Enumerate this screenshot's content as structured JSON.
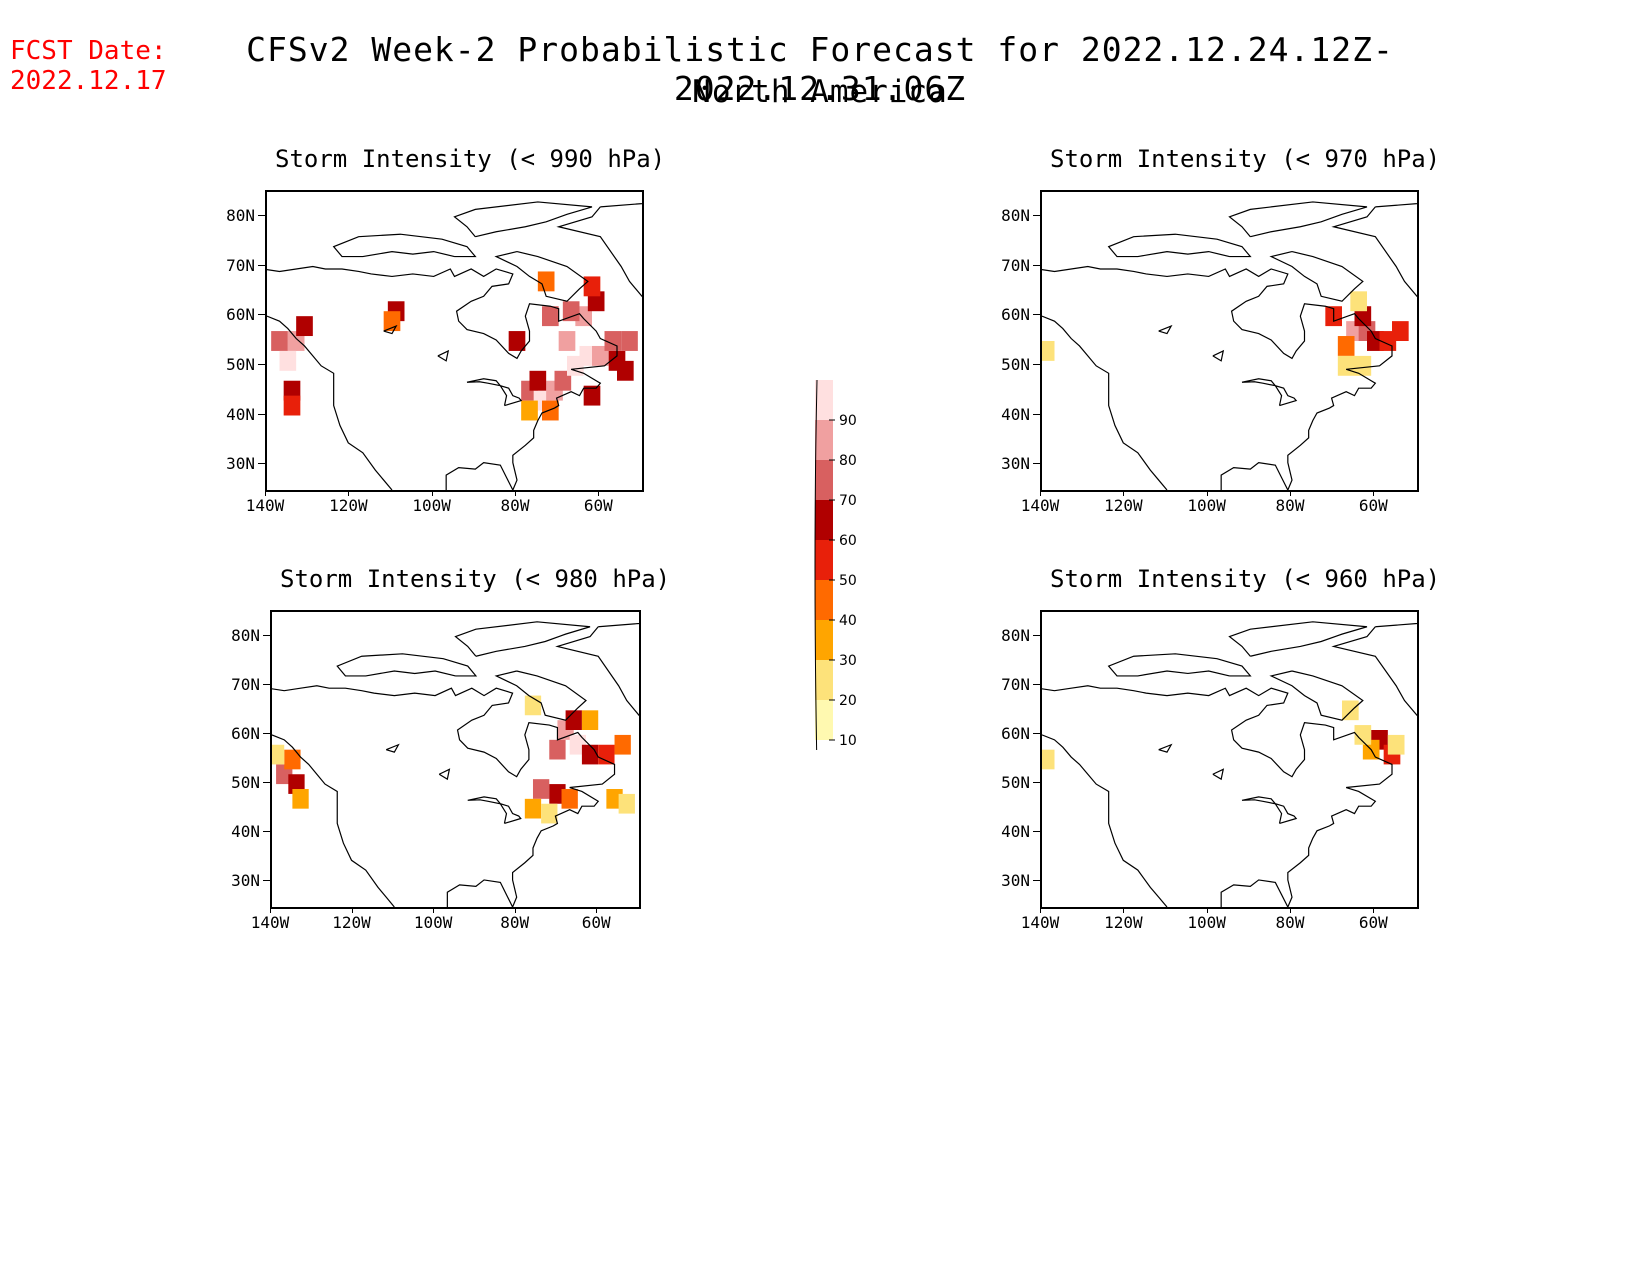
{
  "header": {
    "fcst_label": "FCST Date:",
    "fcst_date": "2022.12.17",
    "title": "CFSv2 Week-2 Probabilistic Forecast for 2022.12.24.12Z-2022.12.31.06Z",
    "subtitle": "North America"
  },
  "axes": {
    "lat_labels": [
      "80N",
      "70N",
      "60N",
      "50N",
      "40N",
      "30N"
    ],
    "lon_labels": [
      "140W",
      "120W",
      "100W",
      "80W",
      "60W"
    ]
  },
  "panels": [
    {
      "id": "p990",
      "title": "Storm Intensity (< 990 hPa)"
    },
    {
      "id": "p970",
      "title": "Storm Intensity (< 970 hPa)"
    },
    {
      "id": "p980",
      "title": "Storm Intensity (< 980 hPa)"
    },
    {
      "id": "p960",
      "title": "Storm Intensity (< 960 hPa)"
    }
  ],
  "colorbar": {
    "levels": [
      "10",
      "20",
      "30",
      "40",
      "50",
      "60",
      "70",
      "80",
      "90"
    ],
    "colors": [
      "#fff9b0",
      "#fde27a",
      "#ffa500",
      "#ff6a00",
      "#e8200a",
      "#b00000",
      "#d86060",
      "#f0a0a0",
      "#ffe0e0"
    ]
  },
  "chart_data": [
    {
      "type": "heatmap",
      "title": "Storm Intensity (< 990 hPa)",
      "lon_range": [
        -140,
        -50
      ],
      "lat_range": [
        25,
        85
      ],
      "cells": [
        [
          -137,
          55,
          70
        ],
        [
          -133,
          55,
          80
        ],
        [
          -135,
          51,
          90
        ],
        [
          -131,
          58,
          60
        ],
        [
          -134,
          45,
          60
        ],
        [
          -134,
          42,
          50
        ],
        [
          -109,
          61,
          60
        ],
        [
          -110,
          59,
          40
        ],
        [
          -77,
          45,
          70
        ],
        [
          -74,
          43,
          90
        ],
        [
          -71,
          45,
          80
        ],
        [
          -69,
          47,
          70
        ],
        [
          -75,
          47,
          60
        ],
        [
          -72,
          41,
          40
        ],
        [
          -77,
          41,
          30
        ],
        [
          -66,
          50,
          90
        ],
        [
          -68,
          55,
          80
        ],
        [
          -63,
          52,
          90
        ],
        [
          -60,
          52,
          80
        ],
        [
          -56,
          51,
          60
        ],
        [
          -57,
          55,
          70
        ],
        [
          -64,
          60,
          80
        ],
        [
          -67,
          61,
          70
        ],
        [
          -61,
          63,
          60
        ],
        [
          -62,
          66,
          50
        ],
        [
          -72,
          60,
          70
        ],
        [
          -80,
          55,
          60
        ],
        [
          -73,
          67,
          40
        ],
        [
          -62,
          44,
          60
        ],
        [
          -54,
          49,
          60
        ],
        [
          -53,
          55,
          70
        ]
      ]
    },
    {
      "type": "heatmap",
      "title": "Storm Intensity (< 970 hPa)",
      "lon_range": [
        -140,
        -50
      ],
      "lat_range": [
        25,
        85
      ],
      "cells": [
        [
          -65,
          57,
          80
        ],
        [
          -62,
          57,
          70
        ],
        [
          -67,
          54,
          40
        ],
        [
          -63,
          60,
          60
        ],
        [
          -60,
          55,
          60
        ],
        [
          -57,
          55,
          50
        ],
        [
          -54,
          57,
          50
        ],
        [
          -67,
          50,
          20
        ],
        [
          -63,
          50,
          20
        ],
        [
          -64,
          63,
          20
        ],
        [
          -70,
          60,
          50
        ],
        [
          -139,
          53,
          20
        ]
      ]
    },
    {
      "type": "heatmap",
      "title": "Storm Intensity (< 980 hPa)",
      "lon_range": [
        -140,
        -50
      ],
      "lat_range": [
        25,
        85
      ],
      "cells": [
        [
          -68,
          61,
          80
        ],
        [
          -65,
          58,
          90
        ],
        [
          -70,
          57,
          70
        ],
        [
          -62,
          56,
          60
        ],
        [
          -58,
          56,
          50
        ],
        [
          -66,
          63,
          60
        ],
        [
          -62,
          63,
          30
        ],
        [
          -54,
          58,
          40
        ],
        [
          -74,
          49,
          70
        ],
        [
          -70,
          48,
          60
        ],
        [
          -67,
          47,
          40
        ],
        [
          -76,
          45,
          30
        ],
        [
          -72,
          44,
          20
        ],
        [
          -56,
          47,
          30
        ],
        [
          -53,
          46,
          20
        ],
        [
          -137,
          52,
          70
        ],
        [
          -134,
          50,
          60
        ],
        [
          -135,
          55,
          40
        ],
        [
          -133,
          47,
          30
        ],
        [
          -139,
          56,
          20
        ],
        [
          -76,
          66,
          20
        ]
      ]
    },
    {
      "type": "heatmap",
      "title": "Storm Intensity (< 960 hPa)",
      "lon_range": [
        -140,
        -50
      ],
      "lat_range": [
        25,
        85
      ],
      "cells": [
        [
          -59,
          59,
          60
        ],
        [
          -56,
          56,
          50
        ],
        [
          -61,
          57,
          30
        ],
        [
          -55,
          58,
          20
        ],
        [
          -63,
          60,
          20
        ],
        [
          -66,
          65,
          20
        ],
        [
          -139,
          55,
          20
        ]
      ]
    }
  ]
}
